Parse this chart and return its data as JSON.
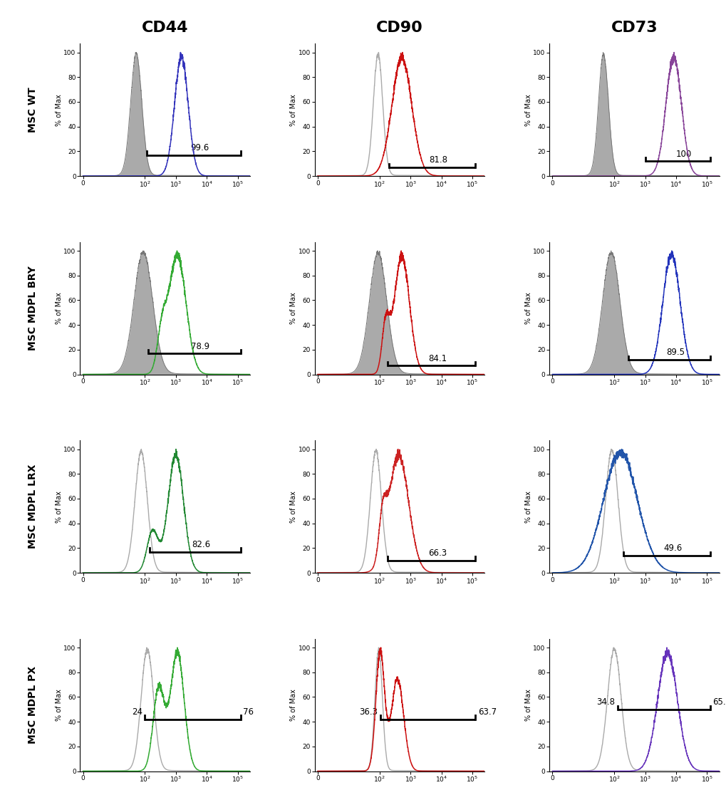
{
  "col_titles": [
    "CD44",
    "CD90",
    "CD73"
  ],
  "row_labels": [
    "MSC WT",
    "MSC MDPL BRY",
    "MSC MDPL LRX",
    "MSC MDPL PX"
  ],
  "marker_colors": [
    [
      "#3333bb",
      "#cc1111",
      "#884499"
    ],
    [
      "#33aa33",
      "#cc1111",
      "#2233bb"
    ],
    [
      "#228833",
      "#cc2222",
      "#2255aa"
    ],
    [
      "#33aa33",
      "#cc1111",
      "#6633bb"
    ]
  ],
  "background_color": "#ffffff"
}
